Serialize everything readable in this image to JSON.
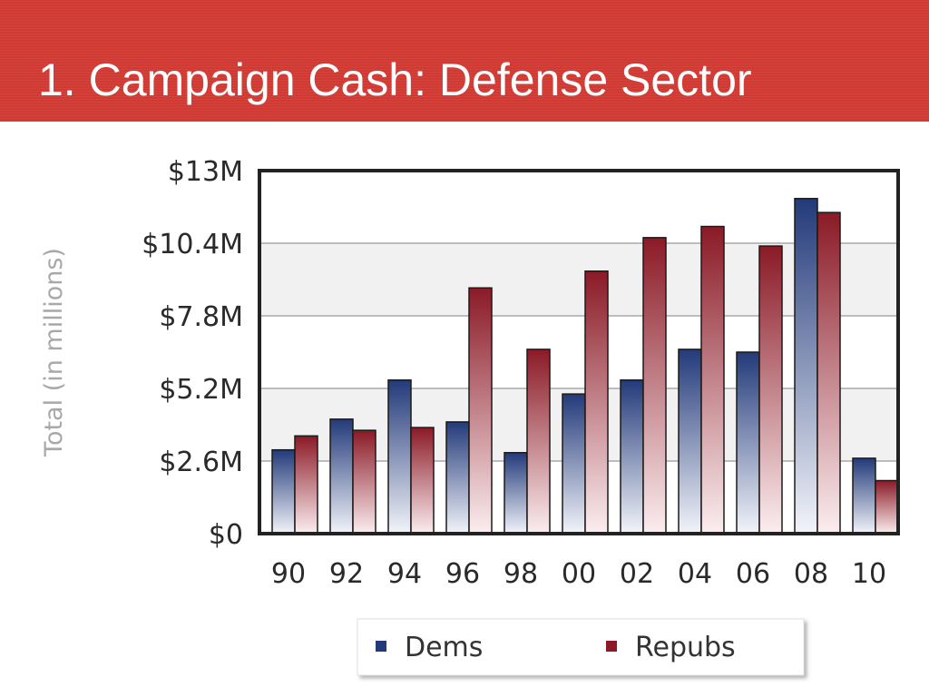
{
  "slide": {
    "title": "1. Campaign Cash: Defense Sector"
  },
  "colors": {
    "title_bar": "#d03a33",
    "dems": "#233a7a",
    "repubs": "#8a1a26"
  },
  "chart_data": {
    "type": "bar",
    "title": "",
    "xlabel": "",
    "ylabel": "Total (in millions)",
    "categories": [
      "90",
      "92",
      "94",
      "96",
      "98",
      "00",
      "02",
      "04",
      "06",
      "08",
      "10"
    ],
    "series": [
      {
        "name": "Dems",
        "values": [
          3.0,
          4.1,
          5.5,
          4.0,
          2.9,
          5.0,
          5.5,
          6.6,
          6.5,
          12.0,
          2.7
        ]
      },
      {
        "name": "Repubs",
        "values": [
          3.5,
          3.7,
          3.8,
          8.8,
          6.6,
          9.4,
          10.6,
          11.0,
          10.3,
          11.5,
          1.9
        ]
      }
    ],
    "ylim": [
      0,
      13
    ],
    "yticks": [
      "$0",
      "$2.6M",
      "$5.2M",
      "$7.8M",
      "$10.4M",
      "$13M"
    ],
    "grid": true,
    "legend": "bottom"
  }
}
